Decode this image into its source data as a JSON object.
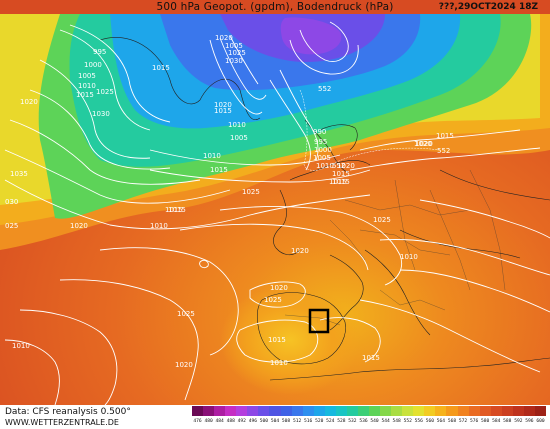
{
  "title": "500 hPa Geopot. (gpdm), Bodendruck (hPa)",
  "timestamp": "???,29OCT2024 18Z",
  "footer": {
    "data_source": "Data: CFS reanalysis 0.500°",
    "website": "WWW.WETTERZENTRALE.DE"
  },
  "legend": {
    "values": [
      "476",
      "480",
      "484",
      "488",
      "492",
      "496",
      "500",
      "504",
      "508",
      "512",
      "516",
      "520",
      "524",
      "528",
      "532",
      "536",
      "540",
      "544",
      "548",
      "552",
      "556",
      "560",
      "564",
      "568",
      "572",
      "576",
      "580",
      "584",
      "588",
      "592",
      "596",
      "600"
    ],
    "colors": [
      "#6a0a55",
      "#8a1178",
      "#ad1ea3",
      "#c52ec4",
      "#b43ede",
      "#8d48e6",
      "#6a4fe8",
      "#4f55e3",
      "#3f62e6",
      "#3a77ec",
      "#2e8fef",
      "#1ea6ea",
      "#16b9df",
      "#19c5c4",
      "#24cb9f",
      "#3ccf77",
      "#5dd358",
      "#85d84a",
      "#a9dd43",
      "#c9e23c",
      "#e3e12f",
      "#f2cc22",
      "#f6b31c",
      "#f59a1b",
      "#f18220",
      "#ea6c23",
      "#e15a23",
      "#d74b22",
      "#cc3f20",
      "#bf331d",
      "#b02a1a",
      "#9d2217"
    ]
  },
  "map": {
    "isobar_labels": [
      "995",
      "1000",
      "1005",
      "1010",
      "1015",
      "1020",
      "1025",
      "1030",
      "1035",
      "030",
      "025",
      "1020",
      "1010",
      "1015",
      "1020",
      "1005",
      "1025",
      "1030",
      "1020",
      "1015",
      "1010",
      "1005",
      "1010",
      "1015",
      "1005",
      "1000",
      "995",
      "990",
      "1010",
      "1015",
      "1020",
      "1025",
      "1015",
      "1025",
      "1020",
      "1015",
      "1025",
      "1020",
      "1025",
      "1010",
      "1015",
      "1010",
      "1020",
      "1015",
      "1010",
      "1020",
      "1020",
      "552",
      "552",
      "552",
      "1015",
      "1015",
      "1015"
    ],
    "frame_box": "selected-region"
  }
}
